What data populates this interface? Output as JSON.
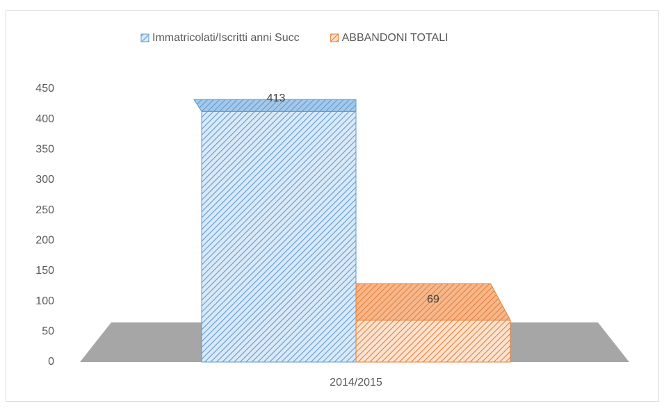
{
  "chart_data": {
    "type": "bar3d",
    "categories": [
      "2014/2015"
    ],
    "series": [
      {
        "name": "Immatricolati/Iscritti anni Succ",
        "color": "#5b9bd5",
        "values": [
          413
        ]
      },
      {
        "name": "ABBANDONI TOTALI",
        "color": "#ed7d31",
        "values": [
          69
        ]
      }
    ],
    "ylim": [
      0,
      450
    ],
    "yticks": [
      0,
      50,
      100,
      150,
      200,
      250,
      300,
      350,
      400,
      450
    ],
    "grid": false,
    "legend": "top",
    "data_labels": true
  }
}
